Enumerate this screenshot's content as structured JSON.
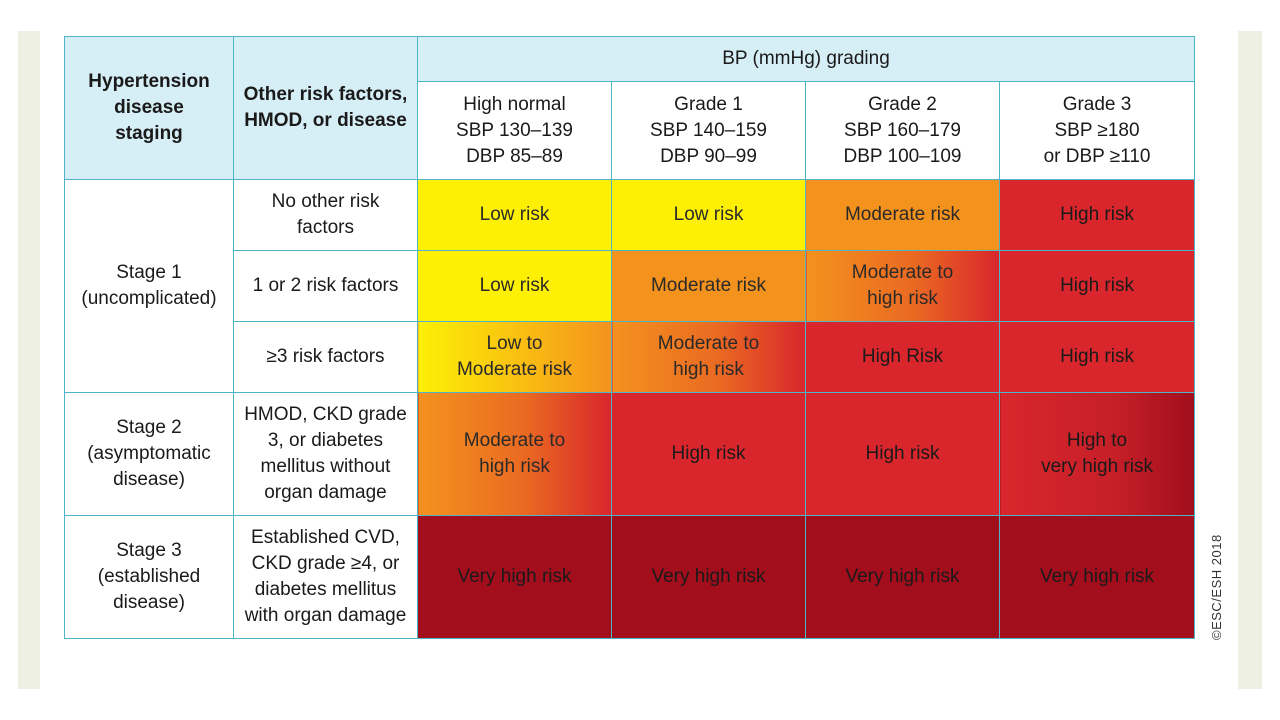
{
  "header": {
    "staging": [
      "Hypertension",
      "disease",
      "staging"
    ],
    "risk_factors": [
      "Other risk factors,",
      "HMOD, or disease"
    ],
    "bp_grading": "BP (mmHg) grading",
    "grades": [
      {
        "lines": [
          "High normal",
          "SBP 130–139",
          "DBP 85–89"
        ]
      },
      {
        "lines": [
          "Grade 1",
          "SBP 140–159",
          "DBP 90–99"
        ]
      },
      {
        "lines": [
          "Grade 2",
          "SBP 160–179",
          "DBP 100–109"
        ]
      },
      {
        "lines": [
          "Grade 3",
          "SBP ≥180",
          "or DBP ≥110"
        ]
      }
    ]
  },
  "stages": [
    {
      "lines": [
        "Stage 1",
        "(uncomplicated)"
      ]
    },
    {
      "lines": [
        "Stage 2",
        "(asymptomatic",
        "disease)"
      ]
    },
    {
      "lines": [
        "Stage 3",
        "(established",
        "disease)"
      ]
    }
  ],
  "rows": [
    {
      "factor": [
        "No other risk",
        "factors"
      ],
      "cells": [
        {
          "lines": [
            "Low risk"
          ],
          "color": "#fdf005"
        },
        {
          "lines": [
            "Low risk"
          ],
          "color": "#fdf005"
        },
        {
          "lines": [
            "Moderate risk"
          ],
          "color": "#f4921e"
        },
        {
          "lines": [
            "High risk"
          ],
          "color": "#d9262c"
        }
      ]
    },
    {
      "factor": [
        "1 or 2 risk factors"
      ],
      "cells": [
        {
          "lines": [
            "Low risk"
          ],
          "color": "#fdf005"
        },
        {
          "lines": [
            "Moderate risk"
          ],
          "color": "#f4921e"
        },
        {
          "lines": [
            "Moderate to",
            "high risk"
          ],
          "color": "#f4921e→#d9262c"
        },
        {
          "lines": [
            "High risk"
          ],
          "color": "#d9262c"
        }
      ]
    },
    {
      "factor": [
        "≥3 risk factors"
      ],
      "cells": [
        {
          "lines": [
            "Low to",
            "Moderate risk"
          ],
          "color": "#fdf005→#f4921e"
        },
        {
          "lines": [
            "Moderate to",
            "high risk"
          ],
          "color": "#f4921e→#d9262c"
        },
        {
          "lines": [
            "High Risk"
          ],
          "color": "#d9262c"
        },
        {
          "lines": [
            "High risk"
          ],
          "color": "#d9262c"
        }
      ]
    },
    {
      "factor": [
        "HMOD, CKD grade",
        "3, or diabetes",
        "mellitus without",
        "organ damage"
      ],
      "cells": [
        {
          "lines": [
            "Moderate to",
            "high risk"
          ],
          "color": "#f4921e→#d9262c"
        },
        {
          "lines": [
            "High risk"
          ],
          "color": "#d9262c"
        },
        {
          "lines": [
            "High risk"
          ],
          "color": "#d9262c"
        },
        {
          "lines": [
            "High to",
            "very high risk"
          ],
          "color": "#d9262c→#a20e1c"
        }
      ]
    },
    {
      "factor": [
        "Established CVD,",
        "CKD grade ≥4, or",
        "diabetes mellitus",
        "with organ damage"
      ],
      "cells": [
        {
          "lines": [
            "Very high risk"
          ],
          "color": "#a20e1c"
        },
        {
          "lines": [
            "Very high risk"
          ],
          "color": "#a20e1c"
        },
        {
          "lines": [
            "Very high risk"
          ],
          "color": "#a20e1c"
        },
        {
          "lines": [
            "Very high risk"
          ],
          "color": "#a20e1c"
        }
      ]
    }
  ],
  "copyright": "©ESC/ESH 2018"
}
